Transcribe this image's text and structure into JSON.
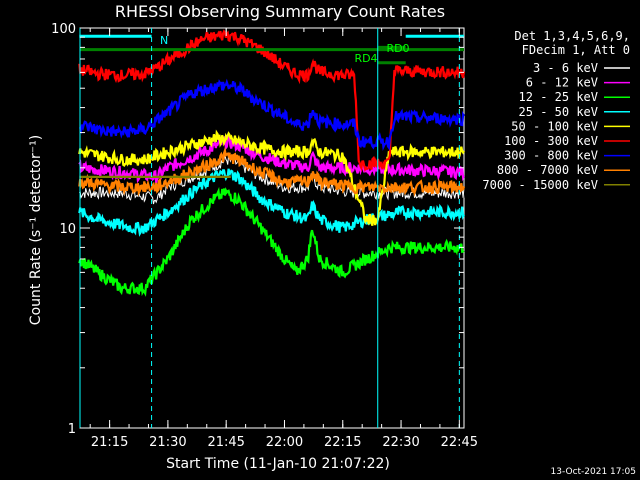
{
  "chart_data": {
    "type": "line",
    "title": "RHESSI Observing Summary Count Rates",
    "xlabel": "Start Time (11-Jan-10 21:07:22)",
    "ylabel": "Count Rate (s⁻¹ detector⁻¹)",
    "yscale": "log",
    "ylim": [
      1,
      100
    ],
    "xlim_minutes": [
      21.123,
      22.77
    ],
    "x_ticks": [
      "21:15",
      "21:30",
      "21:45",
      "22:00",
      "22:15",
      "22:30",
      "22:45"
    ],
    "y_ticks": [
      "1",
      "10",
      "100"
    ],
    "legend_header": [
      "Det 1,3,4,5,6,9,",
      "FDecim 1, Att 0"
    ],
    "legend_position": "right",
    "timestamp": "13-Oct-2021 17:05",
    "annotations": {
      "n_label": "N",
      "rd0_label": "RD0",
      "rd4_label": "RD4"
    },
    "series": [
      {
        "name": "3 - 6 keV",
        "color": "#000000",
        "points": [
          [
            21.12,
            15
          ],
          [
            21.3,
            15
          ],
          [
            21.45,
            14
          ],
          [
            21.5,
            16
          ],
          [
            21.65,
            19
          ],
          [
            21.75,
            22
          ],
          [
            21.8,
            21
          ],
          [
            21.9,
            18
          ],
          [
            22.0,
            16
          ],
          [
            22.1,
            16
          ],
          [
            22.12,
            18
          ],
          [
            22.15,
            16
          ],
          [
            22.3,
            15
          ],
          [
            22.77,
            15
          ]
        ]
      },
      {
        "name": "6 - 12 keV",
        "color": "#ff00ff",
        "points": [
          [
            21.12,
            20
          ],
          [
            21.3,
            19
          ],
          [
            21.45,
            18
          ],
          [
            21.5,
            20
          ],
          [
            21.65,
            24
          ],
          [
            21.75,
            27
          ],
          [
            21.8,
            26
          ],
          [
            21.9,
            23
          ],
          [
            22.0,
            21
          ],
          [
            22.1,
            20
          ],
          [
            22.12,
            23
          ],
          [
            22.15,
            20
          ],
          [
            22.3,
            20
          ],
          [
            22.77,
            19
          ]
        ]
      },
      {
        "name": "12 - 25 keV",
        "color": "#00ff00",
        "points": [
          [
            21.12,
            7
          ],
          [
            21.2,
            6
          ],
          [
            21.3,
            5
          ],
          [
            21.4,
            5
          ],
          [
            21.5,
            7
          ],
          [
            21.6,
            11
          ],
          [
            21.7,
            14
          ],
          [
            21.75,
            15
          ],
          [
            21.8,
            14
          ],
          [
            21.9,
            10
          ],
          [
            22.0,
            7
          ],
          [
            22.05,
            6
          ],
          [
            22.1,
            7
          ],
          [
            22.12,
            10
          ],
          [
            22.15,
            7
          ],
          [
            22.25,
            6
          ],
          [
            22.35,
            7
          ],
          [
            22.45,
            8
          ],
          [
            22.77,
            8
          ]
        ]
      },
      {
        "name": "25 - 50 keV",
        "color": "#00ffff",
        "points": [
          [
            21.12,
            12
          ],
          [
            21.2,
            11
          ],
          [
            21.35,
            10
          ],
          [
            21.4,
            10
          ],
          [
            21.5,
            12
          ],
          [
            21.6,
            15
          ],
          [
            21.7,
            18
          ],
          [
            21.75,
            19
          ],
          [
            21.8,
            18
          ],
          [
            21.9,
            14
          ],
          [
            22.0,
            12
          ],
          [
            22.1,
            11
          ],
          [
            22.12,
            13
          ],
          [
            22.15,
            11
          ],
          [
            22.25,
            10
          ],
          [
            22.35,
            11
          ],
          [
            22.5,
            12
          ],
          [
            22.77,
            12
          ]
        ]
      },
      {
        "name": "50 - 100 keV",
        "color": "#ffff00",
        "points": [
          [
            21.12,
            24
          ],
          [
            21.3,
            22
          ],
          [
            21.4,
            22
          ],
          [
            21.5,
            24
          ],
          [
            21.6,
            26
          ],
          [
            21.7,
            28
          ],
          [
            21.75,
            28
          ],
          [
            21.8,
            27
          ],
          [
            21.9,
            25
          ],
          [
            22.0,
            24
          ],
          [
            22.1,
            24
          ],
          [
            22.12,
            27
          ],
          [
            22.15,
            24
          ],
          [
            22.25,
            23
          ],
          [
            22.35,
            11
          ],
          [
            22.4,
            11
          ],
          [
            22.45,
            24
          ],
          [
            22.77,
            24
          ]
        ]
      },
      {
        "name": "100 - 300 keV",
        "color": "#ff0000",
        "points": [
          [
            21.12,
            62
          ],
          [
            21.2,
            59
          ],
          [
            21.3,
            58
          ],
          [
            21.4,
            59
          ],
          [
            21.45,
            63
          ],
          [
            21.55,
            75
          ],
          [
            21.65,
            88
          ],
          [
            21.75,
            93
          ],
          [
            21.8,
            90
          ],
          [
            21.9,
            78
          ],
          [
            22.0,
            64
          ],
          [
            22.05,
            59
          ],
          [
            22.1,
            58
          ],
          [
            22.12,
            68
          ],
          [
            22.15,
            60
          ],
          [
            22.25,
            58
          ],
          [
            22.3,
            58
          ],
          [
            22.32,
            21
          ],
          [
            22.45,
            21
          ],
          [
            22.47,
            61
          ],
          [
            22.77,
            60
          ]
        ]
      },
      {
        "name": "300 - 800 keV",
        "color": "#0000ff",
        "points": [
          [
            21.12,
            33
          ],
          [
            21.2,
            31
          ],
          [
            21.3,
            30
          ],
          [
            21.4,
            31
          ],
          [
            21.5,
            38
          ],
          [
            21.6,
            47
          ],
          [
            21.7,
            51
          ],
          [
            21.75,
            52
          ],
          [
            21.8,
            50
          ],
          [
            21.9,
            42
          ],
          [
            22.0,
            36
          ],
          [
            22.05,
            33
          ],
          [
            22.1,
            33
          ],
          [
            22.12,
            39
          ],
          [
            22.15,
            34
          ],
          [
            22.25,
            33
          ],
          [
            22.3,
            33
          ],
          [
            22.32,
            27
          ],
          [
            22.45,
            27
          ],
          [
            22.47,
            36
          ],
          [
            22.77,
            35
          ]
        ]
      },
      {
        "name": "800 - 7000 keV",
        "color": "#ff8000",
        "points": [
          [
            21.12,
            17
          ],
          [
            21.3,
            16
          ],
          [
            21.45,
            16
          ],
          [
            21.5,
            17
          ],
          [
            21.65,
            20
          ],
          [
            21.75,
            23
          ],
          [
            21.8,
            22
          ],
          [
            21.9,
            19
          ],
          [
            22.0,
            17
          ],
          [
            22.1,
            17
          ],
          [
            22.12,
            19
          ],
          [
            22.15,
            17
          ],
          [
            22.3,
            16
          ],
          [
            22.77,
            16
          ]
        ]
      },
      {
        "name": "7000 - 15000 keV",
        "color": "#808000",
        "points": [
          [
            21.12,
            18
          ],
          [
            21.77,
            18
          ]
        ]
      }
    ],
    "attenuator_bar": {
      "color": "#008000",
      "value": 78
    },
    "rd_bars": [
      {
        "label": "RD4",
        "x": [
          22.4,
          22.52
        ],
        "value": 67,
        "color": "#008000"
      },
      {
        "label": "RD0",
        "x": [
          22.4,
          22.52
        ],
        "value": 80,
        "color": "#008000"
      }
    ],
    "n_bar": {
      "x": [
        21.12,
        21.43
      ],
      "value": 91,
      "color": "#00ffff"
    },
    "n_bar_right": {
      "x": [
        22.52,
        22.77
      ],
      "value": 91,
      "color": "#00ffff"
    },
    "vlines": [
      {
        "x": 21.123,
        "style": "solid",
        "color": "#00ffff"
      },
      {
        "x": 21.43,
        "style": "dashed",
        "color": "#00ffff"
      },
      {
        "x": 22.4,
        "style": "solid",
        "color": "#00ffff"
      },
      {
        "x": 22.75,
        "style": "dashed",
        "color": "#00ffff"
      }
    ]
  }
}
